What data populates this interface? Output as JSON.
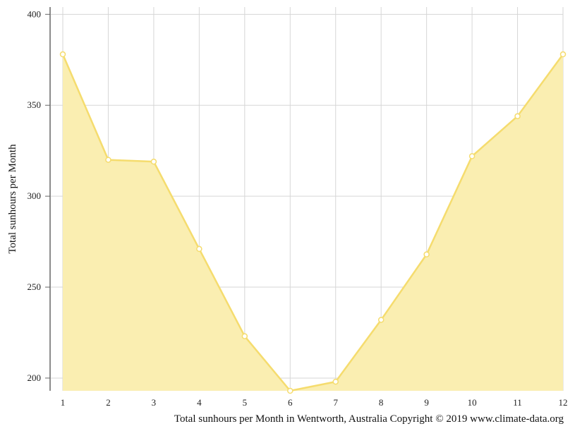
{
  "chart_data": {
    "type": "area",
    "title": "",
    "xlabel": "",
    "ylabel": "Total sunhours per Month",
    "caption": "Total sunhours per Month in Wentworth, Australia Copyright © 2019 www.climate-data.org",
    "x": [
      1,
      2,
      3,
      4,
      5,
      6,
      7,
      8,
      9,
      10,
      11,
      12
    ],
    "yticks": [
      200,
      250,
      300,
      350,
      400
    ],
    "ylim": [
      193,
      404
    ],
    "grid": true,
    "legend": "none",
    "series": [
      {
        "values": [
          378,
          320,
          319,
          271,
          223,
          193,
          198,
          232,
          268,
          322,
          344,
          378
        ],
        "color": "#f5dc6e",
        "fill": "#faeeb1"
      }
    ]
  }
}
